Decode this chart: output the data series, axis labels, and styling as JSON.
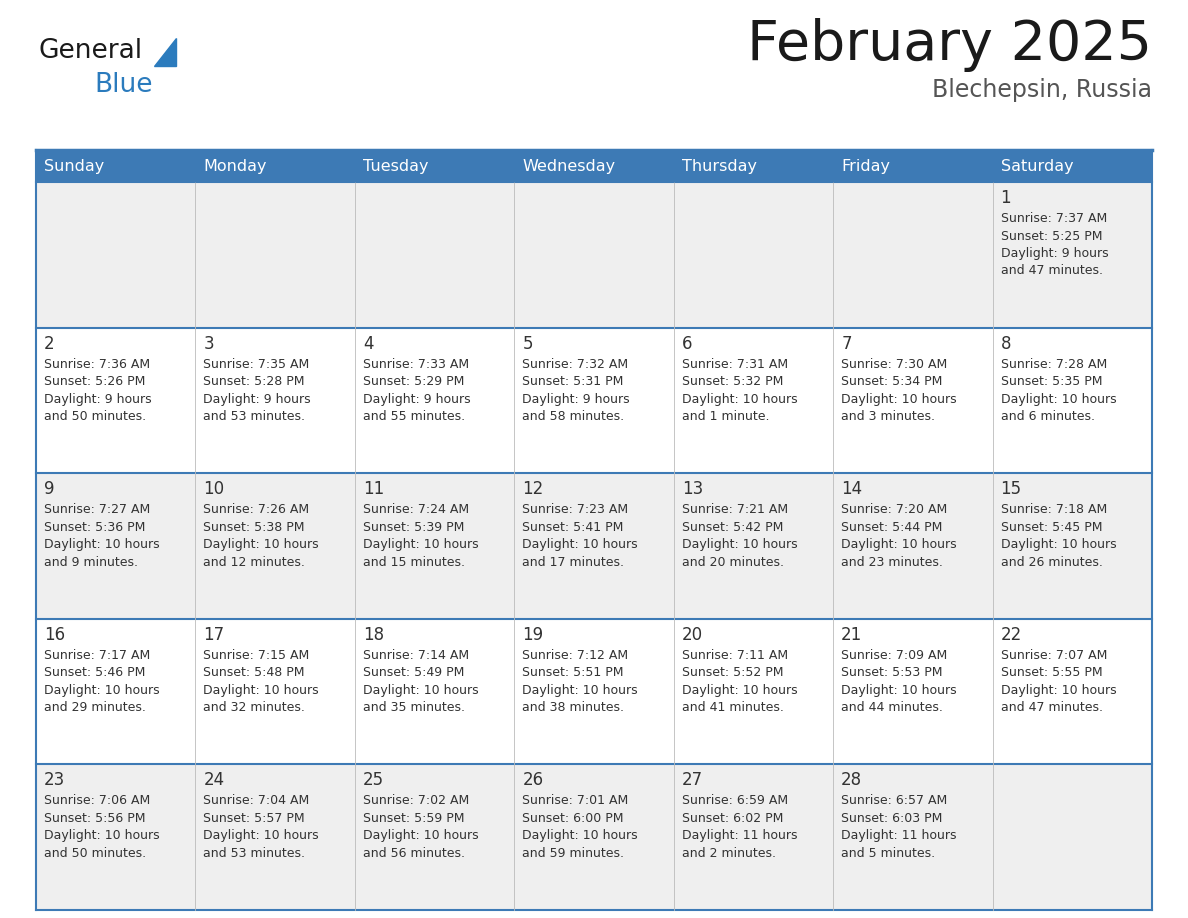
{
  "title": "February 2025",
  "subtitle": "Blechepsin, Russia",
  "days_of_week": [
    "Sunday",
    "Monday",
    "Tuesday",
    "Wednesday",
    "Thursday",
    "Friday",
    "Saturday"
  ],
  "header_bg": "#3D7AB5",
  "header_text": "#FFFFFF",
  "cell_bg_odd": "#EFEFEF",
  "cell_bg_even": "#FFFFFF",
  "border_color": "#3D7AB5",
  "text_color": "#333333",
  "title_color": "#1a1a1a",
  "subtitle_color": "#555555",
  "logo_general_color": "#1a1a1a",
  "logo_blue_color": "#2B7BBD",
  "weeks": [
    [
      {
        "day": null,
        "sunrise": null,
        "sunset": null,
        "daylight_line1": null,
        "daylight_line2": null
      },
      {
        "day": null,
        "sunrise": null,
        "sunset": null,
        "daylight_line1": null,
        "daylight_line2": null
      },
      {
        "day": null,
        "sunrise": null,
        "sunset": null,
        "daylight_line1": null,
        "daylight_line2": null
      },
      {
        "day": null,
        "sunrise": null,
        "sunset": null,
        "daylight_line1": null,
        "daylight_line2": null
      },
      {
        "day": null,
        "sunrise": null,
        "sunset": null,
        "daylight_line1": null,
        "daylight_line2": null
      },
      {
        "day": null,
        "sunrise": null,
        "sunset": null,
        "daylight_line1": null,
        "daylight_line2": null
      },
      {
        "day": "1",
        "sunrise": "Sunrise: 7:37 AM",
        "sunset": "Sunset: 5:25 PM",
        "daylight_line1": "Daylight: 9 hours",
        "daylight_line2": "and 47 minutes."
      }
    ],
    [
      {
        "day": "2",
        "sunrise": "Sunrise: 7:36 AM",
        "sunset": "Sunset: 5:26 PM",
        "daylight_line1": "Daylight: 9 hours",
        "daylight_line2": "and 50 minutes."
      },
      {
        "day": "3",
        "sunrise": "Sunrise: 7:35 AM",
        "sunset": "Sunset: 5:28 PM",
        "daylight_line1": "Daylight: 9 hours",
        "daylight_line2": "and 53 minutes."
      },
      {
        "day": "4",
        "sunrise": "Sunrise: 7:33 AM",
        "sunset": "Sunset: 5:29 PM",
        "daylight_line1": "Daylight: 9 hours",
        "daylight_line2": "and 55 minutes."
      },
      {
        "day": "5",
        "sunrise": "Sunrise: 7:32 AM",
        "sunset": "Sunset: 5:31 PM",
        "daylight_line1": "Daylight: 9 hours",
        "daylight_line2": "and 58 minutes."
      },
      {
        "day": "6",
        "sunrise": "Sunrise: 7:31 AM",
        "sunset": "Sunset: 5:32 PM",
        "daylight_line1": "Daylight: 10 hours",
        "daylight_line2": "and 1 minute."
      },
      {
        "day": "7",
        "sunrise": "Sunrise: 7:30 AM",
        "sunset": "Sunset: 5:34 PM",
        "daylight_line1": "Daylight: 10 hours",
        "daylight_line2": "and 3 minutes."
      },
      {
        "day": "8",
        "sunrise": "Sunrise: 7:28 AM",
        "sunset": "Sunset: 5:35 PM",
        "daylight_line1": "Daylight: 10 hours",
        "daylight_line2": "and 6 minutes."
      }
    ],
    [
      {
        "day": "9",
        "sunrise": "Sunrise: 7:27 AM",
        "sunset": "Sunset: 5:36 PM",
        "daylight_line1": "Daylight: 10 hours",
        "daylight_line2": "and 9 minutes."
      },
      {
        "day": "10",
        "sunrise": "Sunrise: 7:26 AM",
        "sunset": "Sunset: 5:38 PM",
        "daylight_line1": "Daylight: 10 hours",
        "daylight_line2": "and 12 minutes."
      },
      {
        "day": "11",
        "sunrise": "Sunrise: 7:24 AM",
        "sunset": "Sunset: 5:39 PM",
        "daylight_line1": "Daylight: 10 hours",
        "daylight_line2": "and 15 minutes."
      },
      {
        "day": "12",
        "sunrise": "Sunrise: 7:23 AM",
        "sunset": "Sunset: 5:41 PM",
        "daylight_line1": "Daylight: 10 hours",
        "daylight_line2": "and 17 minutes."
      },
      {
        "day": "13",
        "sunrise": "Sunrise: 7:21 AM",
        "sunset": "Sunset: 5:42 PM",
        "daylight_line1": "Daylight: 10 hours",
        "daylight_line2": "and 20 minutes."
      },
      {
        "day": "14",
        "sunrise": "Sunrise: 7:20 AM",
        "sunset": "Sunset: 5:44 PM",
        "daylight_line1": "Daylight: 10 hours",
        "daylight_line2": "and 23 minutes."
      },
      {
        "day": "15",
        "sunrise": "Sunrise: 7:18 AM",
        "sunset": "Sunset: 5:45 PM",
        "daylight_line1": "Daylight: 10 hours",
        "daylight_line2": "and 26 minutes."
      }
    ],
    [
      {
        "day": "16",
        "sunrise": "Sunrise: 7:17 AM",
        "sunset": "Sunset: 5:46 PM",
        "daylight_line1": "Daylight: 10 hours",
        "daylight_line2": "and 29 minutes."
      },
      {
        "day": "17",
        "sunrise": "Sunrise: 7:15 AM",
        "sunset": "Sunset: 5:48 PM",
        "daylight_line1": "Daylight: 10 hours",
        "daylight_line2": "and 32 minutes."
      },
      {
        "day": "18",
        "sunrise": "Sunrise: 7:14 AM",
        "sunset": "Sunset: 5:49 PM",
        "daylight_line1": "Daylight: 10 hours",
        "daylight_line2": "and 35 minutes."
      },
      {
        "day": "19",
        "sunrise": "Sunrise: 7:12 AM",
        "sunset": "Sunset: 5:51 PM",
        "daylight_line1": "Daylight: 10 hours",
        "daylight_line2": "and 38 minutes."
      },
      {
        "day": "20",
        "sunrise": "Sunrise: 7:11 AM",
        "sunset": "Sunset: 5:52 PM",
        "daylight_line1": "Daylight: 10 hours",
        "daylight_line2": "and 41 minutes."
      },
      {
        "day": "21",
        "sunrise": "Sunrise: 7:09 AM",
        "sunset": "Sunset: 5:53 PM",
        "daylight_line1": "Daylight: 10 hours",
        "daylight_line2": "and 44 minutes."
      },
      {
        "day": "22",
        "sunrise": "Sunrise: 7:07 AM",
        "sunset": "Sunset: 5:55 PM",
        "daylight_line1": "Daylight: 10 hours",
        "daylight_line2": "and 47 minutes."
      }
    ],
    [
      {
        "day": "23",
        "sunrise": "Sunrise: 7:06 AM",
        "sunset": "Sunset: 5:56 PM",
        "daylight_line1": "Daylight: 10 hours",
        "daylight_line2": "and 50 minutes."
      },
      {
        "day": "24",
        "sunrise": "Sunrise: 7:04 AM",
        "sunset": "Sunset: 5:57 PM",
        "daylight_line1": "Daylight: 10 hours",
        "daylight_line2": "and 53 minutes."
      },
      {
        "day": "25",
        "sunrise": "Sunrise: 7:02 AM",
        "sunset": "Sunset: 5:59 PM",
        "daylight_line1": "Daylight: 10 hours",
        "daylight_line2": "and 56 minutes."
      },
      {
        "day": "26",
        "sunrise": "Sunrise: 7:01 AM",
        "sunset": "Sunset: 6:00 PM",
        "daylight_line1": "Daylight: 10 hours",
        "daylight_line2": "and 59 minutes."
      },
      {
        "day": "27",
        "sunrise": "Sunrise: 6:59 AM",
        "sunset": "Sunset: 6:02 PM",
        "daylight_line1": "Daylight: 11 hours",
        "daylight_line2": "and 2 minutes."
      },
      {
        "day": "28",
        "sunrise": "Sunrise: 6:57 AM",
        "sunset": "Sunset: 6:03 PM",
        "daylight_line1": "Daylight: 11 hours",
        "daylight_line2": "and 5 minutes."
      },
      {
        "day": null,
        "sunrise": null,
        "sunset": null,
        "daylight_line1": null,
        "daylight_line2": null
      }
    ]
  ]
}
